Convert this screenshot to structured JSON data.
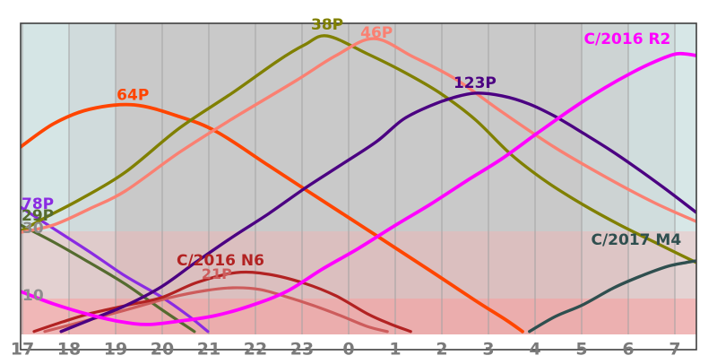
{
  "chart_data": {
    "type": "line",
    "description": "Comet altitude versus time during the night (17:00 evening through 07:27 morning). Gray area is night, cyan bands are twilight, red horizontal bands mark altitudes below 30 and below 10 degrees.",
    "x_axis": {
      "unit": "hour of night (clock labels)",
      "start_offset_h": -0.04,
      "end_offset_h": 14.46,
      "ticks": [
        {
          "h": 0,
          "label": "17"
        },
        {
          "h": 1,
          "label": "18"
        },
        {
          "h": 2,
          "label": "19"
        },
        {
          "h": 3,
          "label": "20"
        },
        {
          "h": 4,
          "label": "21"
        },
        {
          "h": 5,
          "label": "22"
        },
        {
          "h": 6,
          "label": "23"
        },
        {
          "h": 7,
          "label": "0"
        },
        {
          "h": 8,
          "label": "1"
        },
        {
          "h": 9,
          "label": "2"
        },
        {
          "h": 10,
          "label": "3"
        },
        {
          "h": 11,
          "label": "4"
        },
        {
          "h": 12,
          "label": "5"
        },
        {
          "h": 13,
          "label": "6"
        },
        {
          "h": 14,
          "label": "7"
        }
      ],
      "tick_color": "#7a7a7a"
    },
    "y_axis": {
      "unit": "altitude (degrees)",
      "range": [
        0,
        92
      ],
      "grid": false,
      "tick_labels": [
        {
          "alt": 30,
          "label": "30"
        },
        {
          "alt": 10,
          "label": "10"
        }
      ],
      "tick_color": "#8c8c8c"
    },
    "background": {
      "night_color": "#c9c9c9",
      "x_bands": [
        {
          "from_h": -0.04,
          "to_h": 1.0,
          "color": "#d5e5e5"
        },
        {
          "from_h": 1.0,
          "to_h": 2.0,
          "color": "#d0dbdc"
        },
        {
          "from_h": 2.0,
          "to_h": 12.0,
          "color": "#c9c9c9"
        },
        {
          "from_h": 12.0,
          "to_h": 13.0,
          "color": "#cdd3d3"
        },
        {
          "from_h": 13.0,
          "to_h": 14.0,
          "color": "#d0dddd"
        },
        {
          "from_h": 14.0,
          "to_h": 14.46,
          "color": "#d7e7e7"
        }
      ],
      "alt_bands": [
        {
          "from_alt": 0,
          "to_alt": 30,
          "color": "rgba(255,170,170,0.33)"
        },
        {
          "from_alt": 0,
          "to_alt": 10,
          "color": "rgba(255,150,150,0.45)"
        }
      ],
      "gridline_color": "#a2a2a2",
      "frame_color": "#3f3f3f"
    },
    "legend_position": "labels drawn on curves",
    "series": [
      {
        "name": "29P",
        "color": "#556B2F",
        "width": 3.2,
        "label": {
          "text": "29P",
          "h": -0.02,
          "alt": 34.6,
          "anchor": "start",
          "size": 17
        },
        "points": [
          [
            -0.04,
            31.9
          ],
          [
            0.67,
            26.8
          ],
          [
            1.44,
            20.7
          ],
          [
            2.21,
            14.3
          ],
          [
            2.98,
            6.8
          ],
          [
            3.69,
            0.2
          ]
        ]
      },
      {
        "name": "78P",
        "color": "#8A2BE2",
        "width": 3.2,
        "label": {
          "text": "78P",
          "h": -0.02,
          "alt": 38.0,
          "anchor": "start",
          "size": 17
        },
        "points": [
          [
            -0.04,
            37.2
          ],
          [
            0.67,
            30.8
          ],
          [
            1.44,
            23.9
          ],
          [
            2.21,
            16.7
          ],
          [
            2.98,
            10.5
          ],
          [
            3.56,
            4.9
          ],
          [
            3.98,
            0.2
          ]
        ]
      },
      {
        "name": "21P",
        "color": "#CD5C5C",
        "width": 3.2,
        "label": {
          "text": "21P",
          "h": 4.17,
          "alt": 17.4,
          "anchor": "middle",
          "size": 16
        },
        "points": [
          [
            0.48,
            0.2
          ],
          [
            1.06,
            2.3
          ],
          [
            1.63,
            4.4
          ],
          [
            2.4,
            7.3
          ],
          [
            3.17,
            10.3
          ],
          [
            3.94,
            12.4
          ],
          [
            4.52,
            13.2
          ],
          [
            5.1,
            12.7
          ],
          [
            5.67,
            10.5
          ],
          [
            6.25,
            7.9
          ],
          [
            6.83,
            4.9
          ],
          [
            7.4,
            1.7
          ],
          [
            7.83,
            0.2
          ]
        ]
      },
      {
        "name": "C/2016 N6",
        "color": "#B22222",
        "width": 3.2,
        "label": {
          "text": "C/2016 N6",
          "h": 4.25,
          "alt": 21.2,
          "anchor": "middle",
          "size": 17
        },
        "points": [
          [
            0.25,
            0.2
          ],
          [
            0.87,
            3.1
          ],
          [
            1.44,
            5.5
          ],
          [
            2.21,
            7.9
          ],
          [
            2.98,
            10.3
          ],
          [
            3.75,
            14.8
          ],
          [
            4.58,
            17.7
          ],
          [
            5.29,
            17.2
          ],
          [
            6.06,
            14.5
          ],
          [
            6.73,
            10.8
          ],
          [
            7.4,
            5.5
          ],
          [
            7.88,
            2.5
          ],
          [
            8.33,
            0.2
          ]
        ]
      },
      {
        "name": "64P",
        "color": "#FF4500",
        "width": 3.8,
        "label": {
          "text": "64P",
          "h": 2.37,
          "alt": 70.4,
          "anchor": "middle",
          "size": 17
        },
        "points": [
          [
            -0.04,
            55.1
          ],
          [
            0.67,
            62.0
          ],
          [
            1.44,
            66.3
          ],
          [
            2.4,
            67.6
          ],
          [
            3.37,
            64.1
          ],
          [
            4.17,
            59.6
          ],
          [
            5.29,
            49.5
          ],
          [
            6.44,
            39.1
          ],
          [
            7.6,
            28.7
          ],
          [
            8.75,
            18.3
          ],
          [
            9.71,
            9.5
          ],
          [
            10.38,
            3.6
          ],
          [
            10.73,
            0.2
          ]
        ]
      },
      {
        "name": "38P",
        "color": "#808000",
        "width": 3.4,
        "label": {
          "text": "38P",
          "h": 6.54,
          "alt": 91.3,
          "anchor": "middle",
          "size": 17
        },
        "points": [
          [
            -0.04,
            30.0
          ],
          [
            0.48,
            34.0
          ],
          [
            1.25,
            39.6
          ],
          [
            2.21,
            47.6
          ],
          [
            3.37,
            60.7
          ],
          [
            4.52,
            71.3
          ],
          [
            5.48,
            80.7
          ],
          [
            6.06,
            85.5
          ],
          [
            6.54,
            88.1
          ],
          [
            7.4,
            82.8
          ],
          [
            8.17,
            77.5
          ],
          [
            8.94,
            71.3
          ],
          [
            9.71,
            63.3
          ],
          [
            10.48,
            52.9
          ],
          [
            11.25,
            44.7
          ],
          [
            12.02,
            38.0
          ],
          [
            12.79,
            32.1
          ],
          [
            13.56,
            26.8
          ],
          [
            14.46,
            20.7
          ]
        ]
      },
      {
        "name": "46P",
        "color": "#FA8072",
        "width": 3.4,
        "label": {
          "text": "46P",
          "h": 7.6,
          "alt": 88.9,
          "anchor": "middle",
          "size": 17
        },
        "points": [
          [
            -0.04,
            29.7
          ],
          [
            0.67,
            31.9
          ],
          [
            1.44,
            36.7
          ],
          [
            2.21,
            42.0
          ],
          [
            3.37,
            53.5
          ],
          [
            4.52,
            63.6
          ],
          [
            5.87,
            74.8
          ],
          [
            6.73,
            82.3
          ],
          [
            7.54,
            87.3
          ],
          [
            8.37,
            82.0
          ],
          [
            9.29,
            75.3
          ],
          [
            10.29,
            65.5
          ],
          [
            11.44,
            54.8
          ],
          [
            12.6,
            45.5
          ],
          [
            13.56,
            38.5
          ],
          [
            14.46,
            32.9
          ]
        ]
      },
      {
        "name": "123P",
        "color": "#4B0082",
        "width": 3.4,
        "label": {
          "text": "123P",
          "h": 9.71,
          "alt": 74.0,
          "anchor": "middle",
          "size": 17
        },
        "points": [
          [
            0.83,
            0.2
          ],
          [
            1.44,
            3.6
          ],
          [
            2.21,
            7.9
          ],
          [
            2.98,
            13.5
          ],
          [
            3.71,
            20.7
          ],
          [
            4.52,
            28.4
          ],
          [
            5.29,
            35.3
          ],
          [
            6.06,
            42.8
          ],
          [
            6.83,
            49.7
          ],
          [
            7.6,
            56.7
          ],
          [
            8.17,
            63.3
          ],
          [
            8.75,
            67.3
          ],
          [
            9.23,
            69.7
          ],
          [
            9.71,
            71.1
          ],
          [
            10.29,
            70.3
          ],
          [
            10.87,
            67.9
          ],
          [
            11.44,
            64.1
          ],
          [
            12.02,
            59.3
          ],
          [
            12.6,
            54.3
          ],
          [
            13.17,
            48.9
          ],
          [
            13.75,
            43.1
          ],
          [
            14.46,
            35.6
          ]
        ]
      },
      {
        "name": "C/2017 M4",
        "color": "#2F4F4F",
        "width": 3.4,
        "label": {
          "text": "C/2017 M4",
          "h": 13.17,
          "alt": 27.3,
          "anchor": "middle",
          "size": 17
        },
        "points": [
          [
            10.88,
            0.2
          ],
          [
            11.44,
            4.7
          ],
          [
            12.02,
            8.1
          ],
          [
            12.69,
            13.2
          ],
          [
            13.27,
            16.7
          ],
          [
            13.85,
            19.6
          ],
          [
            14.23,
            20.7
          ],
          [
            14.46,
            21.2
          ]
        ]
      },
      {
        "name": "C/2016 R2",
        "color": "#FF00FF",
        "width": 3.8,
        "label": {
          "text": "C/2016 R2",
          "h": 12.98,
          "alt": 87.1,
          "anchor": "middle",
          "size": 17
        },
        "points": [
          [
            -0.04,
            12.1
          ],
          [
            0.67,
            8.4
          ],
          [
            1.44,
            5.2
          ],
          [
            2.12,
            3.1
          ],
          [
            2.69,
            2.3
          ],
          [
            3.37,
            3.3
          ],
          [
            4.13,
            4.9
          ],
          [
            4.9,
            7.9
          ],
          [
            5.67,
            12.1
          ],
          [
            6.44,
            18.8
          ],
          [
            7.21,
            24.9
          ],
          [
            7.98,
            31.6
          ],
          [
            8.75,
            38.0
          ],
          [
            9.52,
            44.9
          ],
          [
            10.29,
            51.6
          ],
          [
            11.06,
            59.3
          ],
          [
            11.83,
            66.8
          ],
          [
            12.5,
            72.7
          ],
          [
            13.08,
            77.2
          ],
          [
            13.56,
            80.4
          ],
          [
            14.04,
            82.8
          ],
          [
            14.46,
            82.3
          ]
        ]
      }
    ]
  }
}
